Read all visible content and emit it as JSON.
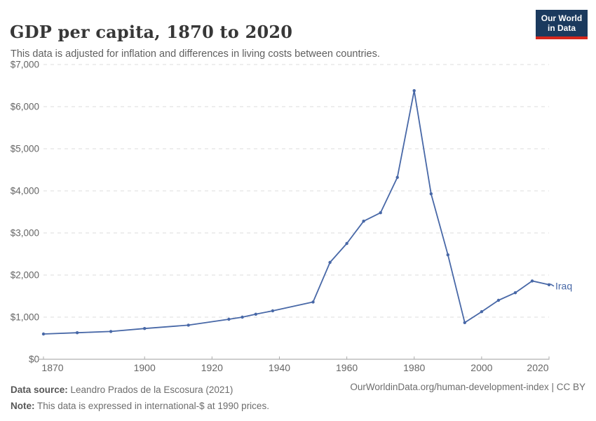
{
  "header": {
    "title": "GDP per capita, 1870 to 2020",
    "subtitle": "This data is adjusted for inflation and differences in living costs between countries.",
    "logo": {
      "line1": "Our World",
      "line2": "in Data"
    }
  },
  "chart_data": {
    "type": "line",
    "title": "GDP per capita, 1870 to 2020",
    "entity": "Iraq",
    "xlabel": "",
    "ylabel": "",
    "xlim": [
      1870,
      2020
    ],
    "ylim": [
      0,
      7000
    ],
    "grid": "horizontal-dashed",
    "legend_position": "end-of-line-label",
    "xticks": [
      1870,
      1900,
      1920,
      1940,
      1960,
      1980,
      2000,
      2020
    ],
    "yticks": [
      0,
      1000,
      2000,
      3000,
      4000,
      5000,
      6000,
      7000
    ],
    "ytick_labels": [
      "$0",
      "$1,000",
      "$2,000",
      "$3,000",
      "$4,000",
      "$5,000",
      "$6,000",
      "$7,000"
    ],
    "series": [
      {
        "name": "Iraq",
        "color": "#4868A7",
        "points": [
          [
            1870,
            600
          ],
          [
            1880,
            630
          ],
          [
            1890,
            660
          ],
          [
            1900,
            730
          ],
          [
            1913,
            810
          ],
          [
            1925,
            950
          ],
          [
            1929,
            1000
          ],
          [
            1933,
            1070
          ],
          [
            1938,
            1150
          ],
          [
            1950,
            1360
          ],
          [
            1955,
            2300
          ],
          [
            1960,
            2750
          ],
          [
            1965,
            3280
          ],
          [
            1970,
            3480
          ],
          [
            1975,
            4320
          ],
          [
            1980,
            6380
          ],
          [
            1985,
            3930
          ],
          [
            1990,
            2480
          ],
          [
            1995,
            870
          ],
          [
            2000,
            1130
          ],
          [
            2005,
            1400
          ],
          [
            2010,
            1580
          ],
          [
            2015,
            1860
          ],
          [
            2020,
            1770
          ]
        ]
      }
    ]
  },
  "theme": {
    "line_color": "#4868A7",
    "grid_color": "#dcdcdc",
    "axis_color": "#9e9e9e",
    "tick_color": "#ababab",
    "tick_label_color": "#666666",
    "logo_bg": "#1B3A5E",
    "logo_accent": "#D6271C"
  },
  "footer": {
    "datasource_label": "Data source:",
    "datasource_text": " Leandro Prados de la Escosura (2021)",
    "note_label": "Note:",
    "note_text": " This data is expressed in international-$ at 1990 prices.",
    "link": "OurWorldinData.org/human-development-index | CC BY"
  }
}
